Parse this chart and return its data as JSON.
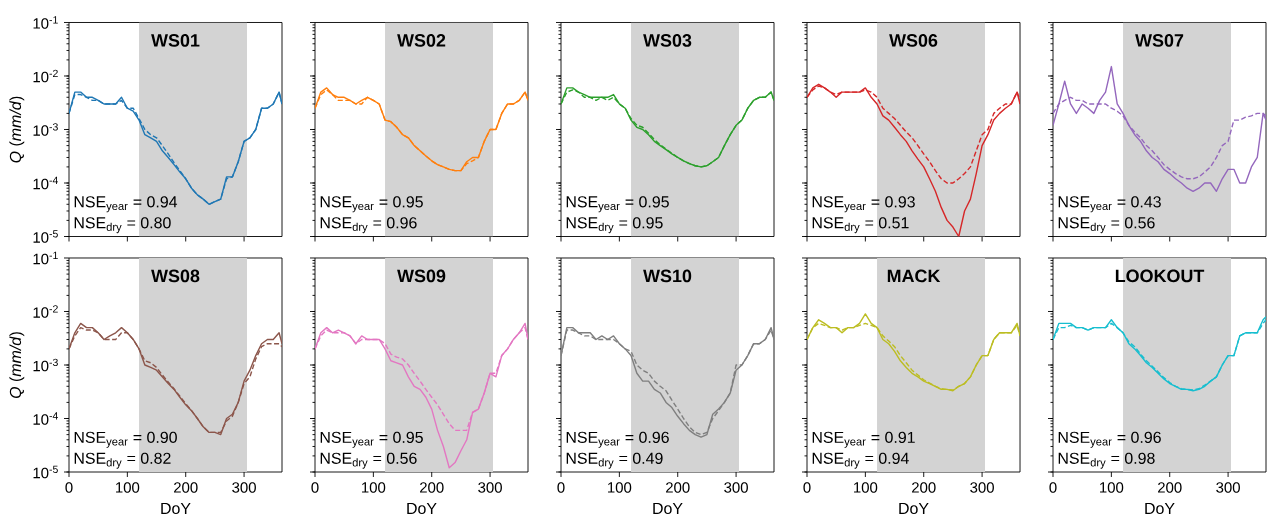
{
  "chart_data": [
    {
      "type": "line",
      "title": "WS01",
      "ylabel": "*Q* (*mm/d*)",
      "log": "y",
      "tick_labels": "y",
      "annotations": [
        "NSE$_{year}$ = 0.94",
        "NSE$_{dry}$ = 0.80"
      ],
      "xlim": [
        0,
        365
      ],
      "xticks": [
        0,
        100,
        200,
        300
      ],
      "ylim": [
        1e-05,
        0.1
      ],
      "yticks": [
        {
          "value": 1e-05,
          "label": "10$^{-5}$"
        },
        {
          "value": 0.0001,
          "label": "10$^{-4}$"
        },
        {
          "value": 0.001,
          "label": "10$^{-3}$"
        },
        {
          "value": 0.01,
          "label": "10$^{-2}$"
        },
        {
          "value": 0.1,
          "label": "10$^{-1}$"
        }
      ],
      "bands": [
        {
          "axis": "x",
          "from": 120,
          "to": 305,
          "color": "#d3d3d3"
        }
      ],
      "x": [
        0,
        10,
        20,
        30,
        40,
        50,
        60,
        70,
        80,
        90,
        100,
        110,
        120,
        130,
        140,
        150,
        160,
        170,
        180,
        190,
        200,
        210,
        220,
        230,
        240,
        250,
        260,
        270,
        280,
        290,
        300,
        310,
        320,
        330,
        340,
        350,
        360,
        365
      ],
      "series": [
        {
          "color": "#1f77b4",
          "line_style": "solid",
          "values": [
            0.002,
            0.005,
            0.005,
            0.004,
            0.004,
            0.0035,
            0.003,
            0.003,
            0.003,
            0.004,
            0.0025,
            0.0022,
            0.0015,
            0.0008,
            0.0007,
            0.0006,
            0.0004,
            0.0003,
            0.00022,
            0.00016,
            0.00012,
            8e-05,
            6e-05,
            5e-05,
            4e-05,
            4.5e-05,
            5e-05,
            0.00013,
            0.00013,
            0.00025,
            0.0006,
            0.0007,
            0.001,
            0.0025,
            0.0025,
            0.003,
            0.005,
            0.003
          ]
        },
        {
          "color": "#1f77b4",
          "line_style": "dashed",
          "values": [
            0.002,
            0.0045,
            0.0045,
            0.004,
            0.0035,
            0.0035,
            0.003,
            0.003,
            0.003,
            0.0035,
            0.0025,
            0.0025,
            0.0016,
            0.001,
            0.0008,
            0.0007,
            0.0005,
            0.00035,
            0.00024,
            0.00017,
            0.00012,
            8e-05,
            6e-05,
            5e-05,
            4e-05,
            4.5e-05,
            5e-05,
            0.00012,
            0.00013,
            0.00025,
            0.0006,
            0.0007,
            0.001,
            0.0025,
            0.0025,
            0.003,
            0.005,
            0.003
          ]
        }
      ]
    },
    {
      "type": "line",
      "title": "WS02",
      "log": "y",
      "tick_labels": false,
      "annotations": [
        "NSE$_{year}$ = 0.95",
        "NSE$_{dry}$ = 0.96"
      ],
      "xlim": [
        0,
        365
      ],
      "xticks": [
        0,
        100,
        200,
        300
      ],
      "ylim": [
        1e-05,
        0.1
      ],
      "yticks": [
        {
          "value": 1e-05,
          "label": null
        },
        {
          "value": 0.0001,
          "label": null
        },
        {
          "value": 0.001,
          "label": null
        },
        {
          "value": 0.01,
          "label": null
        },
        {
          "value": 0.1,
          "label": null
        }
      ],
      "bands": [
        {
          "axis": "x",
          "from": 120,
          "to": 305,
          "color": "#d3d3d3"
        }
      ],
      "x": [
        0,
        10,
        20,
        30,
        40,
        50,
        60,
        70,
        80,
        90,
        100,
        110,
        120,
        130,
        140,
        150,
        160,
        170,
        180,
        190,
        200,
        210,
        220,
        230,
        240,
        250,
        260,
        270,
        280,
        290,
        300,
        310,
        320,
        330,
        340,
        350,
        360,
        365
      ],
      "series": [
        {
          "color": "#ff7f0e",
          "line_style": "solid",
          "values": [
            0.0025,
            0.005,
            0.006,
            0.0045,
            0.004,
            0.004,
            0.0035,
            0.003,
            0.0035,
            0.004,
            0.0035,
            0.003,
            0.0015,
            0.0014,
            0.0011,
            0.0008,
            0.0007,
            0.0005,
            0.0004,
            0.00032,
            0.00026,
            0.00022,
            0.0002,
            0.00018,
            0.00017,
            0.00017,
            0.00025,
            0.0003,
            0.0003,
            0.0006,
            0.001,
            0.001,
            0.002,
            0.003,
            0.003,
            0.0035,
            0.005,
            0.0035
          ]
        },
        {
          "color": "#ff7f0e",
          "line_style": "dashed",
          "values": [
            0.0025,
            0.0045,
            0.0055,
            0.0045,
            0.0035,
            0.0035,
            0.0035,
            0.003,
            0.003,
            0.004,
            0.0035,
            0.003,
            0.0015,
            0.0014,
            0.0011,
            0.0008,
            0.0007,
            0.0005,
            0.0004,
            0.00032,
            0.00026,
            0.00022,
            0.0002,
            0.00018,
            0.00017,
            0.00017,
            0.00023,
            0.00026,
            0.0003,
            0.0006,
            0.001,
            0.001,
            0.002,
            0.003,
            0.003,
            0.0035,
            0.005,
            0.0035
          ]
        }
      ]
    },
    {
      "type": "line",
      "title": "WS03",
      "log": "y",
      "tick_labels": false,
      "annotations": [
        "NSE$_{year}$ = 0.95",
        "NSE$_{dry}$ = 0.95"
      ],
      "xlim": [
        0,
        365
      ],
      "xticks": [
        0,
        100,
        200,
        300
      ],
      "ylim": [
        1e-05,
        0.1
      ],
      "yticks": [
        {
          "value": 1e-05,
          "label": null
        },
        {
          "value": 0.0001,
          "label": null
        },
        {
          "value": 0.001,
          "label": null
        },
        {
          "value": 0.01,
          "label": null
        },
        {
          "value": 0.1,
          "label": null
        }
      ],
      "bands": [
        {
          "axis": "x",
          "from": 120,
          "to": 305,
          "color": "#d3d3d3"
        }
      ],
      "x": [
        0,
        10,
        20,
        30,
        40,
        50,
        60,
        70,
        80,
        90,
        100,
        110,
        120,
        130,
        140,
        150,
        160,
        170,
        180,
        190,
        200,
        210,
        220,
        230,
        240,
        250,
        260,
        270,
        280,
        290,
        300,
        310,
        320,
        330,
        340,
        350,
        360,
        365
      ],
      "series": [
        {
          "color": "#2ca02c",
          "line_style": "solid",
          "values": [
            0.003,
            0.006,
            0.006,
            0.005,
            0.0045,
            0.004,
            0.004,
            0.004,
            0.004,
            0.0045,
            0.003,
            0.0025,
            0.0015,
            0.0011,
            0.001,
            0.0008,
            0.0006,
            0.0005,
            0.00042,
            0.00035,
            0.0003,
            0.00026,
            0.00023,
            0.00021,
            0.0002,
            0.00021,
            0.00025,
            0.0003,
            0.0005,
            0.0008,
            0.0012,
            0.0015,
            0.0025,
            0.0035,
            0.004,
            0.004,
            0.005,
            0.0035
          ]
        },
        {
          "color": "#2ca02c",
          "line_style": "dashed",
          "values": [
            0.003,
            0.005,
            0.0055,
            0.005,
            0.004,
            0.004,
            0.0035,
            0.004,
            0.0035,
            0.004,
            0.003,
            0.0025,
            0.0016,
            0.0012,
            0.0011,
            0.00085,
            0.00065,
            0.00052,
            0.00043,
            0.00036,
            0.0003,
            0.00026,
            0.00023,
            0.00021,
            0.0002,
            0.00021,
            0.00025,
            0.0003,
            0.0005,
            0.0008,
            0.0012,
            0.0015,
            0.0025,
            0.0035,
            0.004,
            0.004,
            0.005,
            0.0035
          ]
        }
      ]
    },
    {
      "type": "line",
      "title": "WS06",
      "log": "y",
      "tick_labels": false,
      "annotations": [
        "NSE$_{year}$ = 0.93",
        "NSE$_{dry}$ = 0.51"
      ],
      "xlim": [
        0,
        365
      ],
      "xticks": [
        0,
        100,
        200,
        300
      ],
      "ylim": [
        1e-05,
        0.1
      ],
      "yticks": [
        {
          "value": 1e-05,
          "label": null
        },
        {
          "value": 0.0001,
          "label": null
        },
        {
          "value": 0.001,
          "label": null
        },
        {
          "value": 0.01,
          "label": null
        },
        {
          "value": 0.1,
          "label": null
        }
      ],
      "bands": [
        {
          "axis": "x",
          "from": 120,
          "to": 305,
          "color": "#d3d3d3"
        }
      ],
      "x": [
        0,
        10,
        20,
        30,
        40,
        50,
        60,
        70,
        80,
        90,
        100,
        110,
        120,
        130,
        140,
        150,
        160,
        170,
        180,
        190,
        200,
        210,
        220,
        230,
        240,
        250,
        260,
        270,
        280,
        290,
        300,
        310,
        320,
        330,
        340,
        350,
        360,
        365
      ],
      "series": [
        {
          "color": "#d62728",
          "line_style": "solid",
          "values": [
            0.004,
            0.006,
            0.007,
            0.006,
            0.005,
            0.004,
            0.005,
            0.005,
            0.005,
            0.005,
            0.006,
            0.004,
            0.003,
            0.0018,
            0.0015,
            0.0011,
            0.0008,
            0.0006,
            0.0004,
            0.00028,
            0.0002,
            0.00012,
            7e-05,
            3.5e-05,
            2e-05,
            1.5e-05,
            1e-05,
            3e-05,
            5e-05,
            0.00015,
            0.0005,
            0.0008,
            0.0015,
            0.002,
            0.0025,
            0.003,
            0.005,
            0.003
          ]
        },
        {
          "color": "#d62728",
          "line_style": "dashed",
          "values": [
            0.004,
            0.0055,
            0.0065,
            0.006,
            0.005,
            0.0045,
            0.005,
            0.005,
            0.005,
            0.005,
            0.0055,
            0.005,
            0.004,
            0.0025,
            0.002,
            0.0016,
            0.0012,
            0.0009,
            0.0007,
            0.0005,
            0.00035,
            0.00025,
            0.00017,
            0.00012,
            0.0001,
            0.0001,
            0.00012,
            0.00015,
            0.0002,
            0.0004,
            0.0008,
            0.001,
            0.002,
            0.0025,
            0.003,
            0.003,
            0.005,
            0.0035
          ]
        }
      ]
    },
    {
      "type": "line",
      "title": "WS07",
      "log": "y",
      "tick_labels": false,
      "annotations": [
        "NSE$_{year}$ = 0.43",
        "NSE$_{dry}$ = 0.56"
      ],
      "xlim": [
        0,
        365
      ],
      "xticks": [
        0,
        100,
        200,
        300
      ],
      "ylim": [
        1e-05,
        0.1
      ],
      "yticks": [
        {
          "value": 1e-05,
          "label": null
        },
        {
          "value": 0.0001,
          "label": null
        },
        {
          "value": 0.001,
          "label": null
        },
        {
          "value": 0.01,
          "label": null
        },
        {
          "value": 0.1,
          "label": null
        }
      ],
      "bands": [
        {
          "axis": "x",
          "from": 120,
          "to": 305,
          "color": "#d3d3d3"
        }
      ],
      "x": [
        0,
        10,
        20,
        30,
        40,
        50,
        60,
        70,
        80,
        90,
        100,
        110,
        120,
        130,
        140,
        150,
        160,
        170,
        180,
        190,
        200,
        210,
        220,
        230,
        240,
        250,
        260,
        270,
        280,
        290,
        300,
        310,
        320,
        330,
        340,
        350,
        360,
        365
      ],
      "series": [
        {
          "color": "#9467bd",
          "line_style": "solid",
          "values": [
            0.0012,
            0.003,
            0.008,
            0.003,
            0.002,
            0.003,
            0.0025,
            0.002,
            0.0035,
            0.005,
            0.015,
            0.003,
            0.002,
            0.0012,
            0.0008,
            0.0006,
            0.0004,
            0.0003,
            0.00025,
            0.00018,
            0.00015,
            0.00012,
            0.0001,
            8e-05,
            7e-05,
            8e-05,
            0.0001,
            0.0001,
            7e-05,
            0.00012,
            0.00018,
            0.00018,
            0.0001,
            0.0001,
            0.0002,
            0.0003,
            0.002,
            0.0015
          ]
        },
        {
          "color": "#9467bd",
          "line_style": "dashed",
          "values": [
            0.002,
            0.003,
            0.0035,
            0.004,
            0.0035,
            0.0035,
            0.003,
            0.003,
            0.003,
            0.003,
            0.0025,
            0.0022,
            0.0018,
            0.0012,
            0.0009,
            0.0007,
            0.0005,
            0.0004,
            0.0003,
            0.00022,
            0.00018,
            0.00015,
            0.00013,
            0.00012,
            0.00012,
            0.00013,
            0.00016,
            0.0002,
            0.0003,
            0.0005,
            0.0006,
            0.0015,
            0.0015,
            0.0017,
            0.0018,
            0.002,
            0.002,
            0.0018
          ]
        }
      ]
    },
    {
      "type": "line",
      "title": "WS08",
      "ylabel": "*Q* (*mm/d*)",
      "xlabel": "DoY",
      "log": "y",
      "annotations": [
        "NSE$_{year}$ = 0.90",
        "NSE$_{dry}$ = 0.82"
      ],
      "xlim": [
        0,
        365
      ],
      "xticks": [
        0,
        100,
        200,
        300
      ],
      "ylim": [
        1e-05,
        0.1
      ],
      "yticks": [
        {
          "value": 1e-05,
          "label": "10$^{-5}$"
        },
        {
          "value": 0.0001,
          "label": "10$^{-4}$"
        },
        {
          "value": 0.001,
          "label": "10$^{-3}$"
        },
        {
          "value": 0.01,
          "label": "10$^{-2}$"
        },
        {
          "value": 0.1,
          "label": "10$^{-1}$"
        }
      ],
      "bands": [
        {
          "axis": "x",
          "from": 120,
          "to": 305,
          "color": "#d3d3d3"
        }
      ],
      "x": [
        0,
        10,
        20,
        30,
        40,
        50,
        60,
        70,
        80,
        90,
        100,
        110,
        120,
        130,
        140,
        150,
        160,
        170,
        180,
        190,
        200,
        210,
        220,
        230,
        240,
        250,
        260,
        270,
        280,
        290,
        300,
        310,
        320,
        330,
        340,
        350,
        360,
        365
      ],
      "series": [
        {
          "color": "#8c564b",
          "line_style": "solid",
          "values": [
            0.002,
            0.004,
            0.006,
            0.005,
            0.005,
            0.004,
            0.003,
            0.0035,
            0.004,
            0.005,
            0.004,
            0.003,
            0.002,
            0.001,
            0.0009,
            0.0008,
            0.0006,
            0.00045,
            0.00035,
            0.00025,
            0.00018,
            0.00014,
            0.0001,
            7e-05,
            5.5e-05,
            5.5e-05,
            5e-05,
            0.0001,
            0.00012,
            0.0002,
            0.0005,
            0.0008,
            0.0015,
            0.0025,
            0.003,
            0.003,
            0.004,
            0.0025
          ]
        },
        {
          "color": "#8c564b",
          "line_style": "dashed",
          "values": [
            0.002,
            0.0035,
            0.005,
            0.0045,
            0.0045,
            0.004,
            0.003,
            0.003,
            0.003,
            0.004,
            0.004,
            0.003,
            0.002,
            0.0012,
            0.0011,
            0.0009,
            0.00065,
            0.00048,
            0.00036,
            0.00026,
            0.00019,
            0.00014,
            0.0001,
            7e-05,
            5.5e-05,
            5.5e-05,
            5.5e-05,
            9e-05,
            0.00011,
            0.0002,
            0.00045,
            0.0006,
            0.0013,
            0.0022,
            0.0025,
            0.0025,
            0.0025,
            0.0022
          ]
        }
      ]
    },
    {
      "type": "line",
      "title": "WS09",
      "xlabel": "DoY",
      "log": "y",
      "tick_labels": "x",
      "annotations": [
        "NSE$_{year}$ = 0.95",
        "NSE$_{dry}$ = 0.56"
      ],
      "xlim": [
        0,
        365
      ],
      "xticks": [
        0,
        100,
        200,
        300
      ],
      "ylim": [
        1e-05,
        0.1
      ],
      "yticks": [
        {
          "value": 1e-05,
          "label": null
        },
        {
          "value": 0.0001,
          "label": null
        },
        {
          "value": 0.001,
          "label": null
        },
        {
          "value": 0.01,
          "label": null
        },
        {
          "value": 0.1,
          "label": null
        }
      ],
      "bands": [
        {
          "axis": "x",
          "from": 120,
          "to": 305,
          "color": "#d3d3d3"
        }
      ],
      "x": [
        0,
        10,
        20,
        30,
        40,
        50,
        60,
        70,
        80,
        90,
        100,
        110,
        120,
        130,
        140,
        150,
        160,
        170,
        180,
        190,
        200,
        210,
        220,
        230,
        240,
        250,
        260,
        270,
        280,
        290,
        300,
        310,
        320,
        330,
        340,
        350,
        360,
        365
      ],
      "series": [
        {
          "color": "#e377c2",
          "line_style": "solid",
          "values": [
            0.002,
            0.004,
            0.005,
            0.004,
            0.0045,
            0.004,
            0.0035,
            0.0025,
            0.0035,
            0.003,
            0.003,
            0.003,
            0.002,
            0.0012,
            0.0011,
            0.001,
            0.0006,
            0.0004,
            0.00035,
            0.00025,
            0.00015,
            6e-05,
            3e-05,
            1.2e-05,
            1.5e-05,
            2.5e-05,
            4e-05,
            0.00013,
            0.00015,
            0.0003,
            0.0007,
            0.0006,
            0.0015,
            0.002,
            0.003,
            0.004,
            0.006,
            0.003
          ]
        },
        {
          "color": "#e377c2",
          "line_style": "dashed",
          "values": [
            0.002,
            0.0035,
            0.0045,
            0.004,
            0.004,
            0.004,
            0.0035,
            0.0025,
            0.003,
            0.003,
            0.003,
            0.003,
            0.0025,
            0.0016,
            0.0014,
            0.0013,
            0.001,
            0.0007,
            0.0005,
            0.00035,
            0.00025,
            0.00018,
            0.00012,
            8e-05,
            6e-05,
            6e-05,
            6e-05,
            0.00013,
            0.00015,
            0.0003,
            0.0007,
            0.0007,
            0.0015,
            0.002,
            0.003,
            0.004,
            0.005,
            0.003
          ]
        }
      ]
    },
    {
      "type": "line",
      "title": "WS10",
      "xlabel": "DoY",
      "log": "y",
      "tick_labels": "x",
      "annotations": [
        "NSE$_{year}$ = 0.96",
        "NSE$_{dry}$ = 0.49"
      ],
      "xlim": [
        0,
        365
      ],
      "xticks": [
        0,
        100,
        200,
        300
      ],
      "ylim": [
        1e-05,
        0.1
      ],
      "yticks": [
        {
          "value": 1e-05,
          "label": null
        },
        {
          "value": 0.0001,
          "label": null
        },
        {
          "value": 0.001,
          "label": null
        },
        {
          "value": 0.01,
          "label": null
        },
        {
          "value": 0.1,
          "label": null
        }
      ],
      "bands": [
        {
          "axis": "x",
          "from": 120,
          "to": 305,
          "color": "#d3d3d3"
        }
      ],
      "x": [
        0,
        10,
        20,
        30,
        40,
        50,
        60,
        70,
        80,
        90,
        100,
        110,
        120,
        130,
        140,
        150,
        160,
        170,
        180,
        190,
        200,
        210,
        220,
        230,
        240,
        250,
        260,
        270,
        280,
        290,
        300,
        310,
        320,
        330,
        340,
        350,
        360,
        365
      ],
      "series": [
        {
          "color": "#7f7f7f",
          "line_style": "solid",
          "values": [
            0.0015,
            0.005,
            0.005,
            0.004,
            0.004,
            0.004,
            0.003,
            0.0035,
            0.003,
            0.0035,
            0.0025,
            0.002,
            0.0015,
            0.0007,
            0.0005,
            0.0005,
            0.00035,
            0.0003,
            0.0002,
            0.00016,
            0.00011,
            8e-05,
            6e-05,
            5e-05,
            4.5e-05,
            5e-05,
            0.00012,
            0.00015,
            0.0002,
            0.0003,
            0.0008,
            0.001,
            0.0015,
            0.0025,
            0.0025,
            0.003,
            0.005,
            0.003
          ]
        },
        {
          "color": "#7f7f7f",
          "line_style": "dashed",
          "values": [
            0.0015,
            0.0045,
            0.0045,
            0.004,
            0.0035,
            0.0035,
            0.003,
            0.003,
            0.003,
            0.003,
            0.0025,
            0.002,
            0.0018,
            0.001,
            0.0008,
            0.0007,
            0.0005,
            0.0004,
            0.00033,
            0.00022,
            0.00015,
            0.0001,
            7e-05,
            5.5e-05,
            5e-05,
            5.5e-05,
            0.0001,
            0.00014,
            0.0002,
            0.0003,
            0.001,
            0.001,
            0.0015,
            0.0025,
            0.0025,
            0.003,
            0.0045,
            0.003
          ]
        }
      ]
    },
    {
      "type": "line",
      "title": "MACK",
      "xlabel": "DoY",
      "log": "y",
      "tick_labels": "x",
      "annotations": [
        "NSE$_{year}$ = 0.91",
        "NSE$_{dry}$ = 0.94"
      ],
      "xlim": [
        0,
        365
      ],
      "xticks": [
        0,
        100,
        200,
        300
      ],
      "ylim": [
        1e-05,
        0.1
      ],
      "yticks": [
        {
          "value": 1e-05,
          "label": null
        },
        {
          "value": 0.0001,
          "label": null
        },
        {
          "value": 0.001,
          "label": null
        },
        {
          "value": 0.01,
          "label": null
        },
        {
          "value": 0.1,
          "label": null
        }
      ],
      "bands": [
        {
          "axis": "x",
          "from": 120,
          "to": 305,
          "color": "#d3d3d3"
        }
      ],
      "x": [
        0,
        10,
        20,
        30,
        40,
        50,
        60,
        70,
        80,
        90,
        100,
        110,
        120,
        130,
        140,
        150,
        160,
        170,
        180,
        190,
        200,
        210,
        220,
        230,
        240,
        250,
        260,
        270,
        280,
        290,
        300,
        310,
        320,
        330,
        340,
        350,
        360,
        365
      ],
      "series": [
        {
          "color": "#bcbd22",
          "line_style": "solid",
          "values": [
            0.003,
            0.005,
            0.007,
            0.006,
            0.005,
            0.005,
            0.004,
            0.005,
            0.005,
            0.006,
            0.009,
            0.006,
            0.005,
            0.003,
            0.0025,
            0.0018,
            0.0012,
            0.0009,
            0.0007,
            0.0006,
            0.0005,
            0.00045,
            0.0004,
            0.00035,
            0.00035,
            0.00033,
            0.0004,
            0.00045,
            0.0006,
            0.001,
            0.0015,
            0.0015,
            0.003,
            0.004,
            0.004,
            0.004,
            0.006,
            0.0035
          ]
        },
        {
          "color": "#bcbd22",
          "line_style": "dashed",
          "values": [
            0.003,
            0.005,
            0.006,
            0.0055,
            0.005,
            0.005,
            0.0045,
            0.005,
            0.005,
            0.0055,
            0.006,
            0.0055,
            0.005,
            0.0035,
            0.0028,
            0.0022,
            0.0015,
            0.0011,
            0.0008,
            0.00065,
            0.00053,
            0.00046,
            0.0004,
            0.00036,
            0.00035,
            0.00034,
            0.0004,
            0.00045,
            0.0006,
            0.001,
            0.0015,
            0.0015,
            0.003,
            0.004,
            0.004,
            0.004,
            0.0055,
            0.0035
          ]
        }
      ]
    },
    {
      "type": "line",
      "title": "LOOKOUT",
      "xlabel": "DoY",
      "log": "y",
      "tick_labels": "x",
      "annotations": [
        "NSE$_{year}$ = 0.96",
        "NSE$_{dry}$ = 0.98"
      ],
      "xlim": [
        0,
        365
      ],
      "xticks": [
        0,
        100,
        200,
        300
      ],
      "ylim": [
        1e-05,
        0.1
      ],
      "yticks": [
        {
          "value": 1e-05,
          "label": null
        },
        {
          "value": 0.0001,
          "label": null
        },
        {
          "value": 0.001,
          "label": null
        },
        {
          "value": 0.01,
          "label": null
        },
        {
          "value": 0.1,
          "label": null
        }
      ],
      "bands": [
        {
          "axis": "x",
          "from": 120,
          "to": 305,
          "color": "#d3d3d3"
        }
      ],
      "x": [
        0,
        10,
        20,
        30,
        40,
        50,
        60,
        70,
        80,
        90,
        100,
        110,
        120,
        130,
        140,
        150,
        160,
        170,
        180,
        190,
        200,
        210,
        220,
        230,
        240,
        250,
        260,
        270,
        280,
        290,
        300,
        310,
        320,
        330,
        340,
        350,
        360,
        365
      ],
      "series": [
        {
          "color": "#17becf",
          "line_style": "solid",
          "values": [
            0.003,
            0.006,
            0.006,
            0.006,
            0.005,
            0.005,
            0.0045,
            0.005,
            0.005,
            0.005,
            0.007,
            0.005,
            0.004,
            0.0025,
            0.002,
            0.0015,
            0.0011,
            0.0009,
            0.0007,
            0.00055,
            0.00045,
            0.0004,
            0.00035,
            0.00035,
            0.00033,
            0.00035,
            0.0004,
            0.0005,
            0.0006,
            0.001,
            0.0015,
            0.0015,
            0.0035,
            0.004,
            0.004,
            0.004,
            0.007,
            0.008
          ]
        },
        {
          "color": "#17becf",
          "line_style": "dashed",
          "values": [
            0.003,
            0.005,
            0.005,
            0.0055,
            0.005,
            0.005,
            0.0045,
            0.005,
            0.005,
            0.005,
            0.006,
            0.005,
            0.004,
            0.0027,
            0.0022,
            0.0016,
            0.0012,
            0.00095,
            0.00075,
            0.00058,
            0.00047,
            0.0004,
            0.00036,
            0.00035,
            0.00034,
            0.00036,
            0.00042,
            0.0005,
            0.0006,
            0.001,
            0.0015,
            0.0015,
            0.0035,
            0.004,
            0.004,
            0.004,
            0.006,
            0.007
          ]
        }
      ]
    }
  ]
}
